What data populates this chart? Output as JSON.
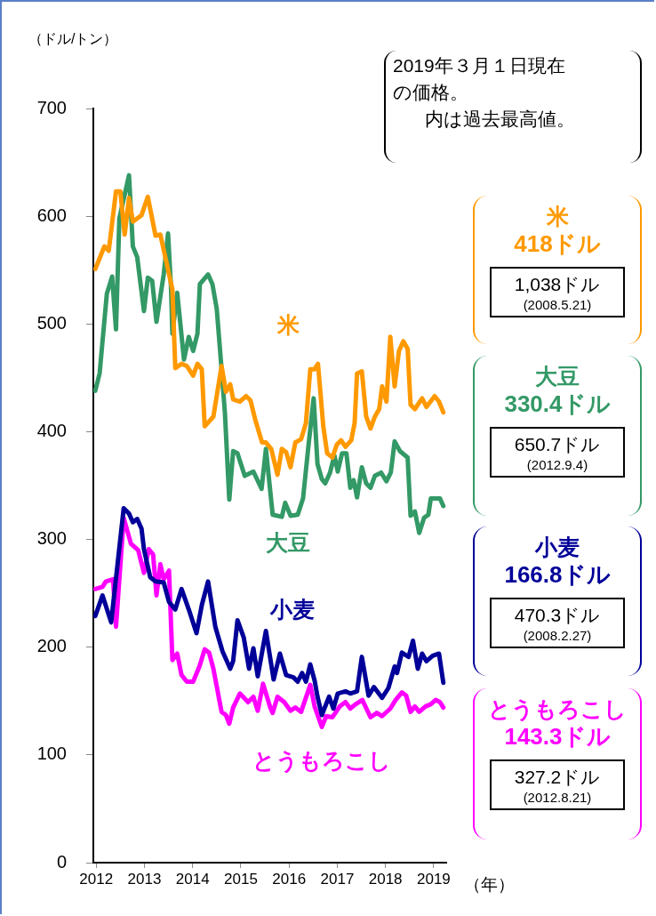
{
  "chart_data": {
    "type": "line",
    "ylabel": "（ドル/トン）",
    "xlabel": "（年）",
    "xlim": [
      2011.94,
      2019.26
    ],
    "xticks": [
      2012,
      2013,
      2014,
      2015,
      2016,
      2017,
      2018,
      2019
    ],
    "ylim": [
      0,
      700
    ],
    "yticks": [
      0,
      100,
      200,
      300,
      400,
      500,
      600,
      700
    ],
    "marker": "none",
    "line_style": "solid",
    "annotations": [
      "2019年３月１日現在の価格。",
      "内は過去最高値。",
      "418ドル",
      "1,038ドル",
      "(2008.5.21)",
      "330.4ドル",
      "650.7ドル",
      "(2012.9.4)",
      "166.8ドル",
      "470.3ドル",
      "(2008.2.27)",
      "143.3ドル",
      "327.2ドル",
      "(2012.8.21)"
    ],
    "series": [
      {
        "name": "米",
        "color": "#ff9900",
        "x": [
          2011.98,
          2012.17,
          2012.26,
          2012.41,
          2012.5,
          2012.59,
          2012.68,
          2012.76,
          2012.94,
          2013.07,
          2013.23,
          2013.33,
          2013.58,
          2013.64,
          2013.77,
          2013.88,
          2014.01,
          2014.1,
          2014.19,
          2014.25,
          2014.43,
          2014.6,
          2014.69,
          2014.78,
          2014.84,
          2014.98,
          2015.11,
          2015.2,
          2015.3,
          2015.44,
          2015.52,
          2015.63,
          2015.76,
          2015.85,
          2015.94,
          2016.03,
          2016.13,
          2016.25,
          2016.35,
          2016.44,
          2016.53,
          2016.6,
          2016.71,
          2016.79,
          2016.9,
          2016.99,
          2017.08,
          2017.17,
          2017.29,
          2017.36,
          2017.41,
          2017.51,
          2017.6,
          2017.69,
          2017.78,
          2017.87,
          2017.93,
          2018.02,
          2018.1,
          2018.19,
          2018.28,
          2018.37,
          2018.46,
          2018.52,
          2018.61,
          2018.76,
          2018.85,
          2019.02,
          2019.11,
          2019.2
        ],
        "values": [
          551,
          572,
          568,
          623,
          623,
          583,
          617,
          595,
          601,
          618,
          582,
          583,
          532,
          459,
          463,
          461,
          452,
          463,
          458,
          405,
          414,
          461,
          437,
          444,
          430,
          428,
          433,
          429,
          411,
          390,
          390,
          384,
          360,
          384,
          381,
          367,
          390,
          393,
          408,
          458,
          458,
          463,
          405,
          380,
          376,
          388,
          392,
          386,
          392,
          408,
          454,
          456,
          414,
          403,
          414,
          421,
          442,
          428,
          488,
          442,
          475,
          484,
          477,
          425,
          421,
          431,
          423,
          433,
          428,
          418
        ]
      },
      {
        "name": "大豆",
        "color": "#339966",
        "x": [
          2011.98,
          2012.07,
          2012.22,
          2012.33,
          2012.41,
          2012.48,
          2012.68,
          2012.76,
          2012.85,
          2012.99,
          2013.07,
          2013.16,
          2013.25,
          2013.4,
          2013.49,
          2013.55,
          2013.58,
          2013.68,
          2013.82,
          2013.92,
          2014.01,
          2014.1,
          2014.15,
          2014.32,
          2014.41,
          2014.5,
          2014.6,
          2014.67,
          2014.76,
          2014.84,
          2014.93,
          2015.08,
          2015.26,
          2015.43,
          2015.52,
          2015.66,
          2015.85,
          2015.92,
          2016.03,
          2016.18,
          2016.29,
          2016.4,
          2016.51,
          2016.59,
          2016.68,
          2016.75,
          2016.85,
          2016.94,
          2017.01,
          2017.1,
          2017.19,
          2017.27,
          2017.34,
          2017.41,
          2017.51,
          2017.6,
          2017.69,
          2017.78,
          2017.91,
          2018.02,
          2018.11,
          2018.19,
          2018.3,
          2018.46,
          2018.52,
          2018.61,
          2018.7,
          2018.8,
          2018.89,
          2018.94,
          2019.07,
          2019.13,
          2019.2
        ],
        "values": [
          438,
          454,
          528,
          544,
          495,
          598,
          638,
          572,
          562,
          512,
          543,
          540,
          502,
          546,
          584,
          535,
          491,
          529,
          467,
          488,
          475,
          491,
          537,
          546,
          537,
          514,
          458,
          417,
          337,
          382,
          380,
          359,
          363,
          347,
          384,
          323,
          321,
          334,
          322,
          323,
          338,
          386,
          431,
          370,
          356,
          352,
          362,
          378,
          363,
          380,
          380,
          348,
          355,
          339,
          367,
          352,
          348,
          359,
          362,
          354,
          362,
          391,
          382,
          376,
          322,
          326,
          306,
          320,
          323,
          338,
          338,
          338,
          331
        ]
      },
      {
        "name": "小麦",
        "color": "#000099",
        "x": [
          2011.98,
          2012.13,
          2012.31,
          2012.57,
          2012.68,
          2012.76,
          2012.85,
          2012.94,
          2012.99,
          2013.12,
          2013.23,
          2013.4,
          2013.51,
          2013.64,
          2013.77,
          2013.92,
          2014.08,
          2014.19,
          2014.32,
          2014.47,
          2014.62,
          2014.78,
          2014.84,
          2014.93,
          2015.06,
          2015.17,
          2015.26,
          2015.35,
          2015.52,
          2015.68,
          2015.81,
          2015.94,
          2016.09,
          2016.18,
          2016.27,
          2016.35,
          2016.44,
          2016.53,
          2016.59,
          2016.68,
          2016.83,
          2016.92,
          2017.01,
          2017.17,
          2017.27,
          2017.41,
          2017.51,
          2017.65,
          2017.76,
          2017.93,
          2018.06,
          2018.19,
          2018.24,
          2018.34,
          2018.48,
          2018.57,
          2018.67,
          2018.76,
          2018.85,
          2018.98,
          2019.11,
          2019.2
        ],
        "values": [
          229,
          248,
          223,
          329,
          324,
          316,
          319,
          310,
          291,
          265,
          261,
          260,
          242,
          235,
          254,
          235,
          213,
          239,
          261,
          219,
          196,
          180,
          187,
          225,
          209,
          180,
          199,
          173,
          215,
          170,
          194,
          174,
          172,
          168,
          176,
          168,
          184,
          169,
          154,
          137,
          154,
          143,
          157,
          159,
          157,
          159,
          191,
          155,
          163,
          153,
          162,
          182,
          176,
          195,
          191,
          206,
          180,
          194,
          187,
          192,
          194,
          167
        ]
      },
      {
        "name": "とうもろこし",
        "color": "#ff00ff",
        "x": [
          2011.98,
          2012.13,
          2012.2,
          2012.35,
          2012.41,
          2012.57,
          2012.72,
          2012.87,
          2012.99,
          2013.09,
          2013.18,
          2013.25,
          2013.33,
          2013.4,
          2013.51,
          2013.58,
          2013.68,
          2013.77,
          2013.88,
          2014.01,
          2014.14,
          2014.25,
          2014.34,
          2014.43,
          2014.6,
          2014.69,
          2014.76,
          2014.84,
          2014.98,
          2015.15,
          2015.26,
          2015.35,
          2015.46,
          2015.61,
          2015.66,
          2015.76,
          2015.9,
          2016.03,
          2016.13,
          2016.25,
          2016.44,
          2016.53,
          2016.68,
          2016.77,
          2016.9,
          2017.05,
          2017.17,
          2017.27,
          2017.38,
          2017.52,
          2017.69,
          2017.82,
          2017.93,
          2018.1,
          2018.21,
          2018.34,
          2018.43,
          2018.52,
          2018.61,
          2018.7,
          2018.83,
          2018.94,
          2019.04,
          2019.13,
          2019.2
        ],
        "values": [
          254,
          256,
          261,
          263,
          219,
          320,
          296,
          290,
          269,
          291,
          286,
          248,
          277,
          263,
          271,
          188,
          194,
          174,
          168,
          168,
          182,
          198,
          195,
          180,
          140,
          137,
          129,
          144,
          157,
          149,
          154,
          141,
          166,
          144,
          139,
          154,
          149,
          141,
          144,
          140,
          165,
          145,
          126,
          136,
          135,
          145,
          149,
          143,
          147,
          151,
          135,
          139,
          136,
          143,
          151,
          158,
          155,
          140,
          145,
          140,
          145,
          147,
          151,
          149,
          144
        ]
      }
    ]
  }
}
